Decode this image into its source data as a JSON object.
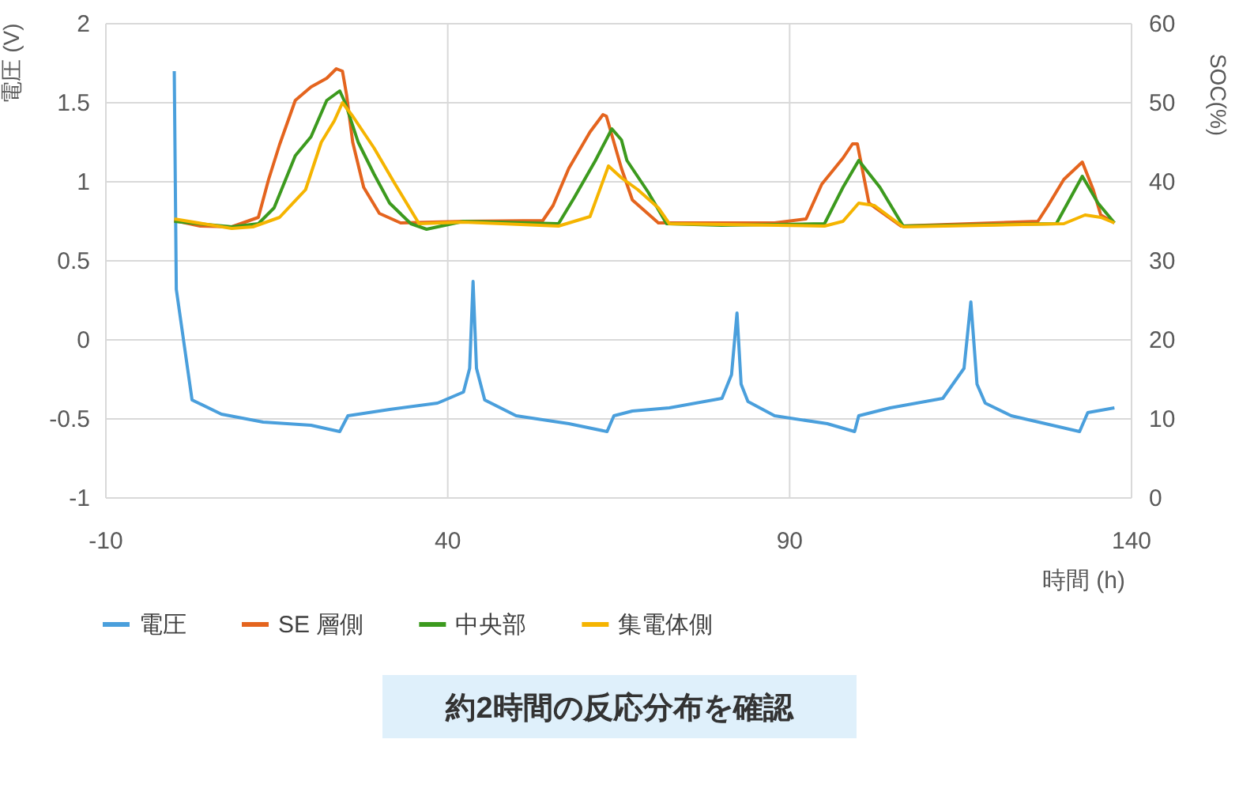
{
  "chart_data": {
    "type": "line",
    "xlabel": "時間 (h)",
    "ylabel": "電圧 (V)",
    "y2label": "SOC(%)",
    "xlim": [
      -10,
      140
    ],
    "xticks": [
      -10,
      40,
      90,
      140
    ],
    "ylim": [
      -1,
      2
    ],
    "yticks": [
      -1,
      -0.5,
      0,
      0.5,
      1,
      1.5,
      2
    ],
    "y2lim": [
      0,
      60
    ],
    "y2ticks": [
      0,
      10,
      20,
      30,
      40,
      50,
      60
    ],
    "grid": true,
    "legend": "bottom",
    "annotations": [
      "約2時間の反応分布を確認"
    ],
    "series": [
      {
        "name": "電圧",
        "color": "#4a9fdc",
        "x": [
          0,
          0.3,
          2.6,
          6.9,
          13,
          20,
          24.2,
          25.4,
          31.5,
          38.5,
          42.3,
          43.2,
          43.7,
          44.2,
          45.4,
          50,
          57.7,
          63.3,
          64.3,
          67,
          72.4,
          80.1,
          81.5,
          82.3,
          82.9,
          83.9,
          87.8,
          95.5,
          99.5,
          100.1,
          104.7,
          112.4,
          115.5,
          116.5,
          117.4,
          118.6,
          122.4,
          132.4,
          133.6,
          137.5
        ],
        "values": [
          1.7,
          0.32,
          -0.38,
          -0.47,
          -0.52,
          -0.54,
          -0.58,
          -0.48,
          -0.44,
          -0.4,
          -0.33,
          -0.18,
          0.37,
          -0.18,
          -0.38,
          -0.48,
          -0.53,
          -0.58,
          -0.48,
          -0.45,
          -0.43,
          -0.37,
          -0.22,
          0.17,
          -0.28,
          -0.39,
          -0.48,
          -0.53,
          -0.58,
          -0.48,
          -0.43,
          -0.37,
          -0.18,
          0.24,
          -0.28,
          -0.4,
          -0.48,
          -0.58,
          -0.46,
          -0.43
        ]
      },
      {
        "name": "SE 層側",
        "color": "#e4641e",
        "axis": "y2",
        "x": [
          0,
          3.8,
          8.4,
          12.3,
          13.8,
          15.4,
          17.7,
          20,
          22.3,
          23.7,
          24.6,
          25.2,
          26.1,
          27.7,
          30,
          33.1,
          42.3,
          53.9,
          55.4,
          57.7,
          60.8,
          62.7,
          63.2,
          65.4,
          67,
          70.8,
          87.8,
          92.4,
          94.7,
          97.8,
          99.2,
          99.9,
          101.6,
          106.3,
          126.3,
          127.8,
          130.1,
          132.8,
          134.4,
          135.5,
          137.5
        ],
        "values": [
          35.1,
          34.4,
          34.3,
          35.5,
          40.3,
          44.7,
          50.3,
          52,
          53.1,
          54.3,
          54,
          51,
          45,
          39.3,
          36,
          34.8,
          35,
          35.1,
          37,
          41.7,
          46.3,
          48.5,
          48.3,
          41.7,
          37.7,
          34.8,
          34.8,
          35.3,
          39.7,
          43,
          44.8,
          44.8,
          37.3,
          34.4,
          35,
          37,
          40.3,
          42.5,
          39,
          35.8,
          34.8
        ]
      },
      {
        "name": "中央部",
        "color": "#3c9a1e",
        "axis": "y2",
        "x": [
          0,
          8.4,
          12.3,
          14.6,
          17.7,
          20,
          22.3,
          24.2,
          25,
          26.9,
          29.2,
          31.5,
          34.6,
          36.9,
          42.3,
          56.2,
          58.5,
          61.6,
          64,
          65.4,
          66.2,
          69.3,
          72,
          80,
          95.1,
          97.8,
          100.1,
          103.2,
          106.6,
          129,
          130.9,
          132.8,
          135.1,
          137.5
        ],
        "values": [
          35,
          34.3,
          34.7,
          36.7,
          43.3,
          45.7,
          50.3,
          51.5,
          50,
          45,
          41,
          37.3,
          34.7,
          34,
          35,
          34.7,
          38,
          42.7,
          46.7,
          45.3,
          42.7,
          38.7,
          34.7,
          34.5,
          34.7,
          39.3,
          42.7,
          39.3,
          34.4,
          34.7,
          37.7,
          40.7,
          37.3,
          34.8
        ]
      },
      {
        "name": "集電体側",
        "color": "#f5b400",
        "axis": "y2",
        "x": [
          0,
          8.4,
          11.5,
          15.4,
          19.2,
          21.5,
          23.4,
          24.6,
          26.1,
          29.2,
          32.3,
          35.8,
          42.3,
          56.2,
          60.8,
          63.5,
          65.4,
          67.8,
          70.8,
          72.4,
          95.1,
          97.8,
          100.1,
          102.4,
          106.6,
          130.1,
          133.2,
          135.5,
          137.5
        ],
        "values": [
          35.3,
          34.1,
          34.3,
          35.5,
          39,
          45,
          47.7,
          50,
          48.3,
          44.3,
          39.7,
          34.7,
          34.9,
          34.4,
          35.6,
          42,
          40.5,
          39,
          36.7,
          34.7,
          34.4,
          35,
          37.3,
          37,
          34.3,
          34.7,
          35.8,
          35.5,
          34.8
        ]
      }
    ]
  }
}
